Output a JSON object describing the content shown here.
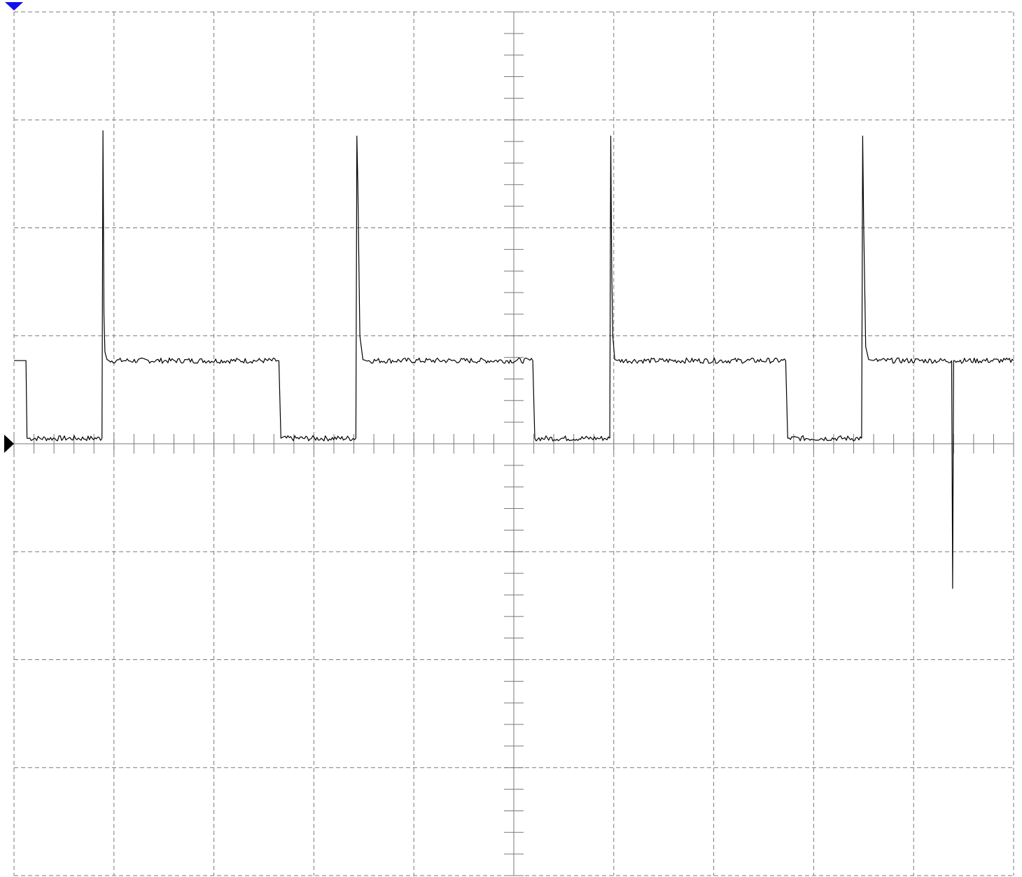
{
  "chart_data": {
    "type": "line",
    "title": "",
    "xlabel": "",
    "ylabel": "",
    "x_divisions": 10,
    "y_divisions": 8,
    "minor_ticks_per_division": 5,
    "xlim": [
      0,
      10
    ],
    "ylim": [
      -4,
      4
    ],
    "grid": true,
    "grid_style": "dashed",
    "series": [
      {
        "color": "#000000",
        "segments": [
          {
            "x": [
              0.0,
              0.12,
              0.13
            ],
            "y": [
              0.77,
              0.77,
              0.05
            ]
          },
          {
            "x": [
              0.13,
              0.88
            ],
            "y": [
              0.05,
              0.05
            ],
            "noise": 0.025
          },
          {
            "x": [
              0.88,
              0.89,
              0.9,
              0.91,
              0.93,
              0.95
            ],
            "y": [
              0.05,
              2.9,
              1.2,
              0.85,
              0.78,
              0.77
            ]
          },
          {
            "x": [
              0.95,
              2.65
            ],
            "y": [
              0.77,
              0.77
            ],
            "noise": 0.025
          },
          {
            "x": [
              2.65,
              2.67
            ],
            "y": [
              0.77,
              0.05
            ]
          },
          {
            "x": [
              2.67,
              3.42
            ],
            "y": [
              0.05,
              0.05
            ],
            "noise": 0.025
          },
          {
            "x": [
              3.42,
              3.43,
              3.44,
              3.46,
              3.49,
              3.52
            ],
            "y": [
              0.05,
              2.85,
              2.4,
              1.0,
              0.78,
              0.77
            ]
          },
          {
            "x": [
              3.52,
              5.19
            ],
            "y": [
              0.77,
              0.77
            ],
            "noise": 0.025
          },
          {
            "x": [
              5.19,
              5.21
            ],
            "y": [
              0.77,
              0.05
            ]
          },
          {
            "x": [
              5.21,
              5.96
            ],
            "y": [
              0.05,
              0.05
            ],
            "noise": 0.025
          },
          {
            "x": [
              5.96,
              5.97,
              5.98,
              5.99,
              6.01,
              6.04
            ],
            "y": [
              0.05,
              2.85,
              1.6,
              1.0,
              0.78,
              0.77
            ]
          },
          {
            "x": [
              6.04,
              7.72
            ],
            "y": [
              0.77,
              0.77
            ],
            "noise": 0.025
          },
          {
            "x": [
              7.72,
              7.74
            ],
            "y": [
              0.77,
              0.05
            ]
          },
          {
            "x": [
              7.74,
              8.48
            ],
            "y": [
              0.05,
              0.05
            ],
            "noise": 0.025
          },
          {
            "x": [
              8.48,
              8.49,
              8.5,
              8.52,
              8.55,
              8.6
            ],
            "y": [
              0.05,
              2.85,
              2.05,
              0.9,
              0.78,
              0.77
            ]
          },
          {
            "x": [
              8.6,
              9.38
            ],
            "y": [
              0.77,
              0.77
            ],
            "noise": 0.025
          },
          {
            "x": [
              9.38,
              9.39,
              9.4,
              9.41
            ],
            "y": [
              0.77,
              -1.34,
              0.77,
              0.77
            ]
          },
          {
            "x": [
              9.41,
              10.0
            ],
            "y": [
              0.77,
              0.77
            ],
            "noise": 0.025
          }
        ]
      }
    ],
    "markers": {
      "trigger_position": "top-left",
      "trigger_color": "#1010ee",
      "ground_level": 0,
      "ground_color": "#000000"
    }
  }
}
